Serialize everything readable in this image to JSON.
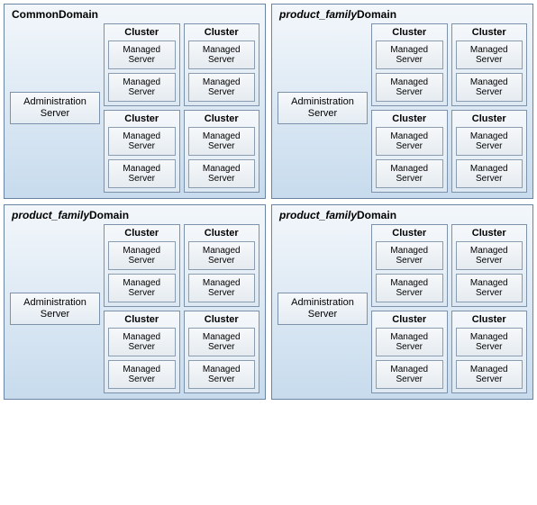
{
  "colors": {
    "domain_bg": "linear-gradient(to bottom, #f3f7fb 0%, #c7dbed 100%)",
    "domain_border": "#6a85a3",
    "admin_bg": "linear-gradient(to bottom, #f7f9fb 0%, #e3ebf2 100%)",
    "admin_border": "#7c92ab",
    "cluster_bg": "linear-gradient(to bottom, #f5f8fb 0%, #dde8f2 100%)",
    "cluster_border": "#7c92ab",
    "managed_bg": "linear-gradient(to bottom, #f6f8fa 0%, #e5ebf0 100%)",
    "managed_border": "#8a9cb0",
    "text": "#000000"
  },
  "labels": {
    "admin": "Administration Server",
    "cluster": "Cluster",
    "managed": "Managed Server"
  },
  "domains": [
    {
      "title_prefix": "",
      "title_prefix_italic": false,
      "title_main": "CommonDomain"
    },
    {
      "title_prefix": "product_family",
      "title_prefix_italic": true,
      "title_main": "Domain"
    },
    {
      "title_prefix": "product_family",
      "title_prefix_italic": true,
      "title_main": "Domain"
    },
    {
      "title_prefix": "product_family",
      "title_prefix_italic": true,
      "title_main": "Domain"
    }
  ],
  "clusters_per_domain": 4,
  "managed_per_cluster": 2
}
